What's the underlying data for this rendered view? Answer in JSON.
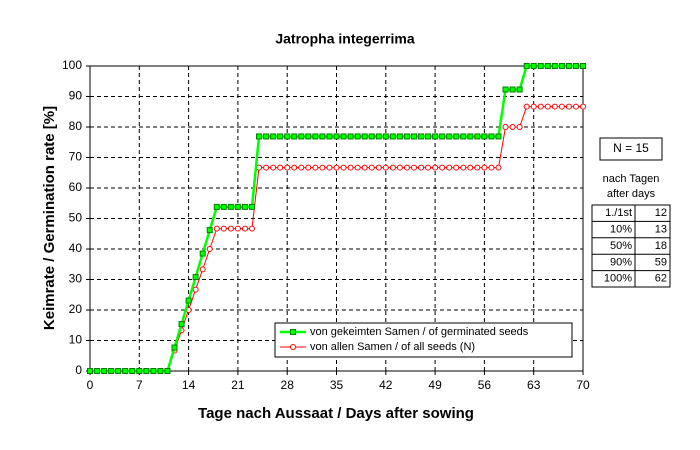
{
  "chart_data": {
    "type": "line",
    "title": "Jatropha integerrima",
    "x_label": "Tage nach Aussaat / Days after sowing",
    "y_label": "Keimrate / Germination rate [%]",
    "x": [
      0,
      1,
      2,
      3,
      4,
      5,
      6,
      7,
      8,
      9,
      10,
      11,
      12,
      13,
      14,
      15,
      16,
      17,
      18,
      19,
      20,
      21,
      22,
      23,
      24,
      25,
      26,
      27,
      28,
      29,
      30,
      31,
      32,
      33,
      34,
      35,
      36,
      37,
      38,
      39,
      40,
      41,
      42,
      43,
      44,
      45,
      46,
      47,
      48,
      49,
      50,
      51,
      52,
      53,
      54,
      55,
      56,
      57,
      58,
      59,
      60,
      61,
      62,
      63,
      64,
      65,
      66,
      67,
      68,
      69,
      70
    ],
    "series": [
      {
        "name": "von gekeimten Samen / of germinated seeds",
        "color": "#00ff00",
        "marker_color": "#008000",
        "values": [
          0,
          0,
          0,
          0,
          0,
          0,
          0,
          0,
          0,
          0,
          0,
          0,
          7.7,
          15.4,
          23.1,
          30.8,
          38.5,
          46.2,
          53.8,
          53.8,
          53.8,
          53.8,
          53.8,
          53.8,
          76.9,
          76.9,
          76.9,
          76.9,
          76.9,
          76.9,
          76.9,
          76.9,
          76.9,
          76.9,
          76.9,
          76.9,
          76.9,
          76.9,
          76.9,
          76.9,
          76.9,
          76.9,
          76.9,
          76.9,
          76.9,
          76.9,
          76.9,
          76.9,
          76.9,
          76.9,
          76.9,
          76.9,
          76.9,
          76.9,
          76.9,
          76.9,
          76.9,
          76.9,
          76.9,
          92.3,
          92.3,
          92.3,
          100,
          100,
          100,
          100,
          100,
          100,
          100,
          100,
          100
        ]
      },
      {
        "name": "von allen Samen / of all seeds (N)",
        "color": "#ff0000",
        "marker_color": "#ff0000",
        "values": [
          0,
          0,
          0,
          0,
          0,
          0,
          0,
          0,
          0,
          0,
          0,
          0,
          6.7,
          13.3,
          20,
          26.7,
          33.3,
          40,
          46.7,
          46.7,
          46.7,
          46.7,
          46.7,
          46.7,
          66.7,
          66.7,
          66.7,
          66.7,
          66.7,
          66.7,
          66.7,
          66.7,
          66.7,
          66.7,
          66.7,
          66.7,
          66.7,
          66.7,
          66.7,
          66.7,
          66.7,
          66.7,
          66.7,
          66.7,
          66.7,
          66.7,
          66.7,
          66.7,
          66.7,
          66.7,
          66.7,
          66.7,
          66.7,
          66.7,
          66.7,
          66.7,
          66.7,
          66.7,
          66.7,
          80,
          80,
          80,
          86.7,
          86.7,
          86.7,
          86.7,
          86.7,
          86.7,
          86.7,
          86.7,
          86.7
        ]
      }
    ],
    "xlim": [
      0,
      70
    ],
    "xticks": [
      0,
      7,
      14,
      21,
      28,
      35,
      42,
      49,
      56,
      63,
      70
    ],
    "ylim": [
      0,
      100
    ],
    "yticks": [
      0,
      10,
      20,
      30,
      40,
      50,
      60,
      70,
      80,
      90,
      100
    ],
    "grid": true
  },
  "side_table": {
    "n_label": "N = 15",
    "heading": [
      "nach Tagen",
      "after days"
    ],
    "rows": [
      [
        "1./1st",
        12
      ],
      [
        "10%",
        13
      ],
      [
        "50%",
        18
      ],
      [
        "90%",
        59
      ],
      [
        "100%",
        62
      ]
    ]
  }
}
